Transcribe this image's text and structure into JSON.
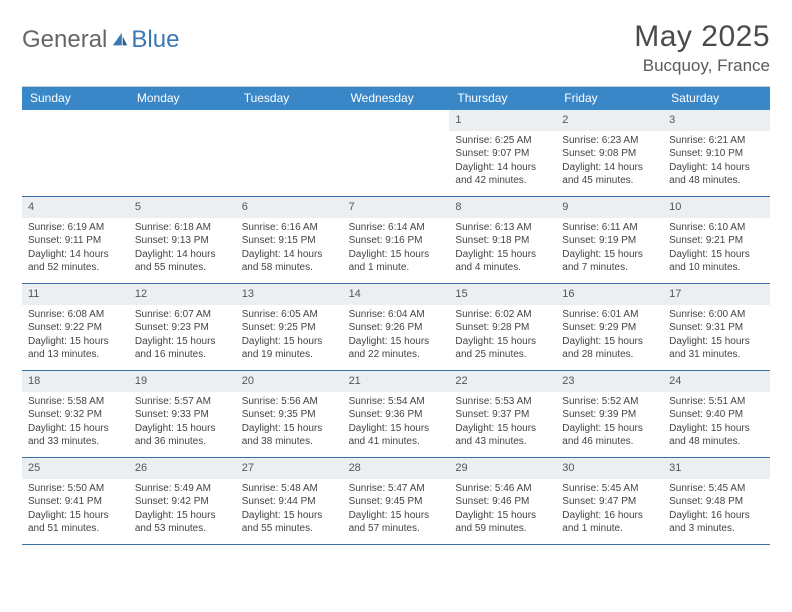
{
  "brand": {
    "part1": "General",
    "part2": "Blue"
  },
  "title": "May 2025",
  "location": "Bucquoy, France",
  "colors": {
    "header_bg": "#3a87c7",
    "header_text": "#ffffff",
    "daynum_bg": "#eceff1",
    "week_border": "#3a6ea5",
    "brand_blue": "#3a78b5",
    "text": "#444444"
  },
  "day_names": [
    "Sunday",
    "Monday",
    "Tuesday",
    "Wednesday",
    "Thursday",
    "Friday",
    "Saturday"
  ],
  "weeks": [
    [
      {
        "n": "",
        "empty": true
      },
      {
        "n": "",
        "empty": true
      },
      {
        "n": "",
        "empty": true
      },
      {
        "n": "",
        "empty": true
      },
      {
        "n": "1",
        "sr": "Sunrise: 6:25 AM",
        "ss": "Sunset: 9:07 PM",
        "d1": "Daylight: 14 hours",
        "d2": "and 42 minutes."
      },
      {
        "n": "2",
        "sr": "Sunrise: 6:23 AM",
        "ss": "Sunset: 9:08 PM",
        "d1": "Daylight: 14 hours",
        "d2": "and 45 minutes."
      },
      {
        "n": "3",
        "sr": "Sunrise: 6:21 AM",
        "ss": "Sunset: 9:10 PM",
        "d1": "Daylight: 14 hours",
        "d2": "and 48 minutes."
      }
    ],
    [
      {
        "n": "4",
        "sr": "Sunrise: 6:19 AM",
        "ss": "Sunset: 9:11 PM",
        "d1": "Daylight: 14 hours",
        "d2": "and 52 minutes."
      },
      {
        "n": "5",
        "sr": "Sunrise: 6:18 AM",
        "ss": "Sunset: 9:13 PM",
        "d1": "Daylight: 14 hours",
        "d2": "and 55 minutes."
      },
      {
        "n": "6",
        "sr": "Sunrise: 6:16 AM",
        "ss": "Sunset: 9:15 PM",
        "d1": "Daylight: 14 hours",
        "d2": "and 58 minutes."
      },
      {
        "n": "7",
        "sr": "Sunrise: 6:14 AM",
        "ss": "Sunset: 9:16 PM",
        "d1": "Daylight: 15 hours",
        "d2": "and 1 minute."
      },
      {
        "n": "8",
        "sr": "Sunrise: 6:13 AM",
        "ss": "Sunset: 9:18 PM",
        "d1": "Daylight: 15 hours",
        "d2": "and 4 minutes."
      },
      {
        "n": "9",
        "sr": "Sunrise: 6:11 AM",
        "ss": "Sunset: 9:19 PM",
        "d1": "Daylight: 15 hours",
        "d2": "and 7 minutes."
      },
      {
        "n": "10",
        "sr": "Sunrise: 6:10 AM",
        "ss": "Sunset: 9:21 PM",
        "d1": "Daylight: 15 hours",
        "d2": "and 10 minutes."
      }
    ],
    [
      {
        "n": "11",
        "sr": "Sunrise: 6:08 AM",
        "ss": "Sunset: 9:22 PM",
        "d1": "Daylight: 15 hours",
        "d2": "and 13 minutes."
      },
      {
        "n": "12",
        "sr": "Sunrise: 6:07 AM",
        "ss": "Sunset: 9:23 PM",
        "d1": "Daylight: 15 hours",
        "d2": "and 16 minutes."
      },
      {
        "n": "13",
        "sr": "Sunrise: 6:05 AM",
        "ss": "Sunset: 9:25 PM",
        "d1": "Daylight: 15 hours",
        "d2": "and 19 minutes."
      },
      {
        "n": "14",
        "sr": "Sunrise: 6:04 AM",
        "ss": "Sunset: 9:26 PM",
        "d1": "Daylight: 15 hours",
        "d2": "and 22 minutes."
      },
      {
        "n": "15",
        "sr": "Sunrise: 6:02 AM",
        "ss": "Sunset: 9:28 PM",
        "d1": "Daylight: 15 hours",
        "d2": "and 25 minutes."
      },
      {
        "n": "16",
        "sr": "Sunrise: 6:01 AM",
        "ss": "Sunset: 9:29 PM",
        "d1": "Daylight: 15 hours",
        "d2": "and 28 minutes."
      },
      {
        "n": "17",
        "sr": "Sunrise: 6:00 AM",
        "ss": "Sunset: 9:31 PM",
        "d1": "Daylight: 15 hours",
        "d2": "and 31 minutes."
      }
    ],
    [
      {
        "n": "18",
        "sr": "Sunrise: 5:58 AM",
        "ss": "Sunset: 9:32 PM",
        "d1": "Daylight: 15 hours",
        "d2": "and 33 minutes."
      },
      {
        "n": "19",
        "sr": "Sunrise: 5:57 AM",
        "ss": "Sunset: 9:33 PM",
        "d1": "Daylight: 15 hours",
        "d2": "and 36 minutes."
      },
      {
        "n": "20",
        "sr": "Sunrise: 5:56 AM",
        "ss": "Sunset: 9:35 PM",
        "d1": "Daylight: 15 hours",
        "d2": "and 38 minutes."
      },
      {
        "n": "21",
        "sr": "Sunrise: 5:54 AM",
        "ss": "Sunset: 9:36 PM",
        "d1": "Daylight: 15 hours",
        "d2": "and 41 minutes."
      },
      {
        "n": "22",
        "sr": "Sunrise: 5:53 AM",
        "ss": "Sunset: 9:37 PM",
        "d1": "Daylight: 15 hours",
        "d2": "and 43 minutes."
      },
      {
        "n": "23",
        "sr": "Sunrise: 5:52 AM",
        "ss": "Sunset: 9:39 PM",
        "d1": "Daylight: 15 hours",
        "d2": "and 46 minutes."
      },
      {
        "n": "24",
        "sr": "Sunrise: 5:51 AM",
        "ss": "Sunset: 9:40 PM",
        "d1": "Daylight: 15 hours",
        "d2": "and 48 minutes."
      }
    ],
    [
      {
        "n": "25",
        "sr": "Sunrise: 5:50 AM",
        "ss": "Sunset: 9:41 PM",
        "d1": "Daylight: 15 hours",
        "d2": "and 51 minutes."
      },
      {
        "n": "26",
        "sr": "Sunrise: 5:49 AM",
        "ss": "Sunset: 9:42 PM",
        "d1": "Daylight: 15 hours",
        "d2": "and 53 minutes."
      },
      {
        "n": "27",
        "sr": "Sunrise: 5:48 AM",
        "ss": "Sunset: 9:44 PM",
        "d1": "Daylight: 15 hours",
        "d2": "and 55 minutes."
      },
      {
        "n": "28",
        "sr": "Sunrise: 5:47 AM",
        "ss": "Sunset: 9:45 PM",
        "d1": "Daylight: 15 hours",
        "d2": "and 57 minutes."
      },
      {
        "n": "29",
        "sr": "Sunrise: 5:46 AM",
        "ss": "Sunset: 9:46 PM",
        "d1": "Daylight: 15 hours",
        "d2": "and 59 minutes."
      },
      {
        "n": "30",
        "sr": "Sunrise: 5:45 AM",
        "ss": "Sunset: 9:47 PM",
        "d1": "Daylight: 16 hours",
        "d2": "and 1 minute."
      },
      {
        "n": "31",
        "sr": "Sunrise: 5:45 AM",
        "ss": "Sunset: 9:48 PM",
        "d1": "Daylight: 16 hours",
        "d2": "and 3 minutes."
      }
    ]
  ]
}
